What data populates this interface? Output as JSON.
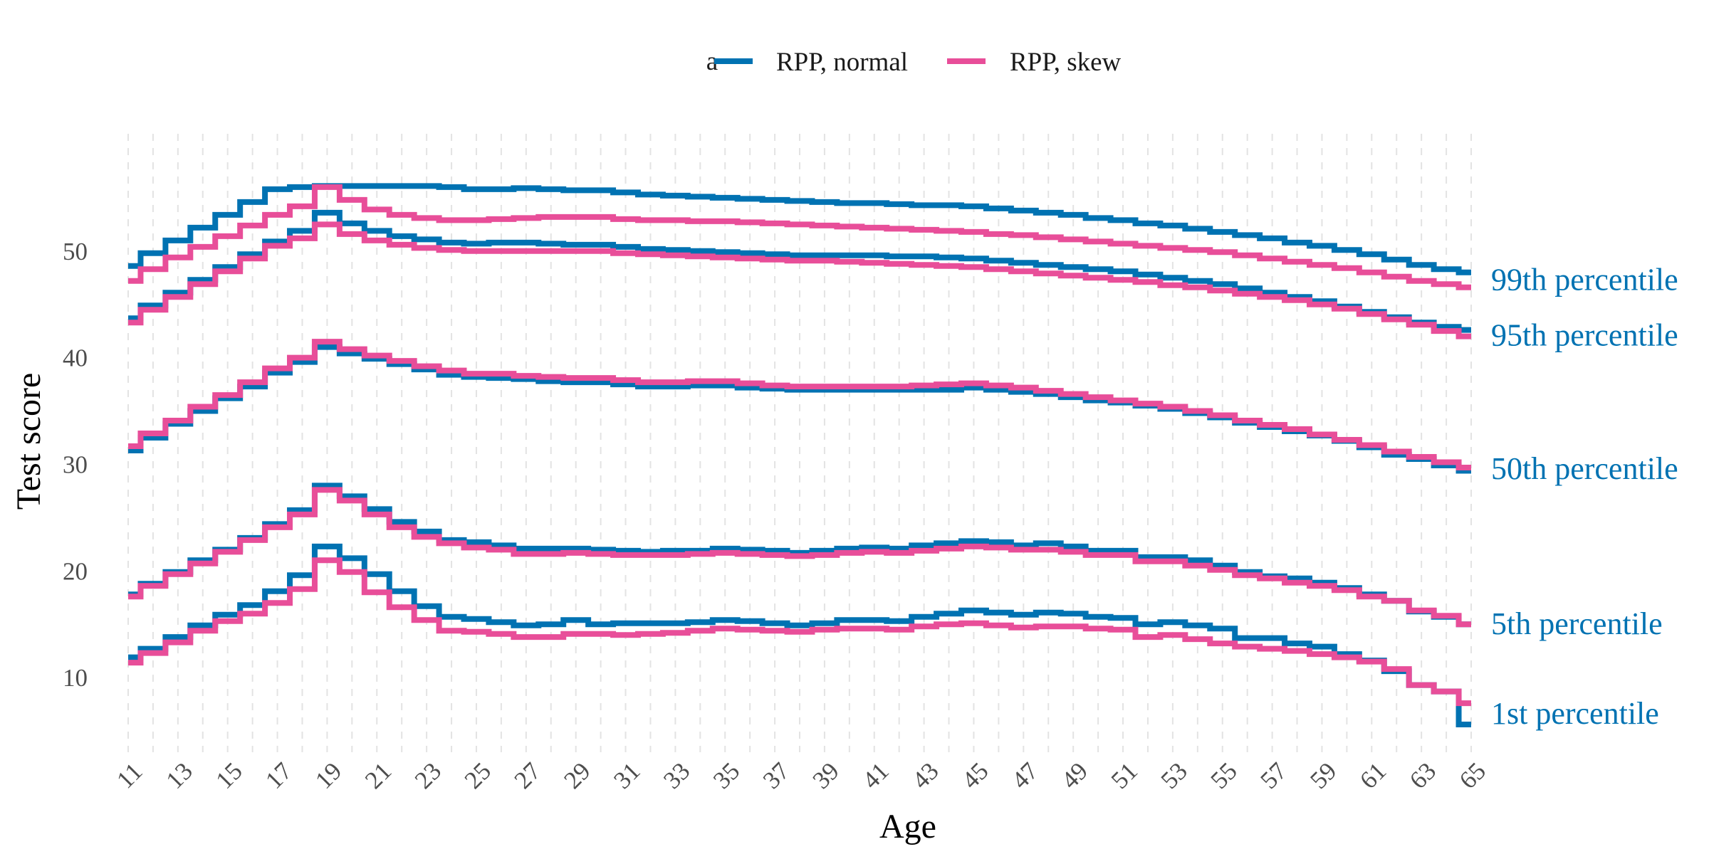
{
  "chart_data": {
    "type": "line",
    "step": true,
    "xlabel": "Age",
    "ylabel": "Test score",
    "xlim": [
      11,
      65
    ],
    "ylim": [
      3,
      61
    ],
    "x_ticks": [
      11,
      13,
      15,
      17,
      19,
      21,
      23,
      25,
      27,
      29,
      31,
      33,
      35,
      37,
      39,
      41,
      43,
      45,
      47,
      49,
      51,
      53,
      55,
      57,
      59,
      61,
      63,
      65
    ],
    "y_ticks": [
      10,
      20,
      30,
      40,
      50
    ],
    "grid_x": true,
    "grid_y": false,
    "legend": {
      "position": "top",
      "entries": [
        {
          "label": "RPP, normal",
          "color": "#0072B2"
        },
        {
          "label": "RPP, skew",
          "color": "#E84E99"
        }
      ]
    },
    "legend_stray_glyph": "a",
    "x": [
      11,
      12,
      13,
      14,
      15,
      16,
      17,
      18,
      19,
      20,
      21,
      22,
      23,
      24,
      25,
      26,
      27,
      28,
      29,
      30,
      31,
      32,
      33,
      34,
      35,
      36,
      37,
      38,
      39,
      40,
      41,
      42,
      43,
      44,
      45,
      46,
      47,
      48,
      49,
      50,
      51,
      52,
      53,
      54,
      55,
      56,
      57,
      58,
      59,
      60,
      61,
      62,
      63,
      64,
      65
    ],
    "series": [
      {
        "group": "99th percentile",
        "model": "RPP, normal",
        "values": [
          48.6,
          49.8,
          51.0,
          52.2,
          53.4,
          54.6,
          55.8,
          56.0,
          56.1,
          56.1,
          56.1,
          56.1,
          56.1,
          56.0,
          55.8,
          55.8,
          55.9,
          55.8,
          55.7,
          55.7,
          55.5,
          55.3,
          55.2,
          55.1,
          55.0,
          54.9,
          54.8,
          54.7,
          54.6,
          54.5,
          54.5,
          54.4,
          54.3,
          54.3,
          54.2,
          54.0,
          53.8,
          53.6,
          53.4,
          53.1,
          52.9,
          52.6,
          52.4,
          52.1,
          51.8,
          51.5,
          51.2,
          50.8,
          50.5,
          50.1,
          49.7,
          49.2,
          48.7,
          48.3,
          48.0
        ]
      },
      {
        "group": "99th percentile",
        "model": "RPP, skew",
        "values": [
          47.2,
          48.3,
          49.4,
          50.4,
          51.4,
          52.4,
          53.4,
          54.2,
          56.0,
          54.8,
          53.9,
          53.4,
          53.1,
          52.9,
          52.9,
          53.0,
          53.1,
          53.2,
          53.2,
          53.2,
          53.0,
          52.9,
          52.9,
          52.8,
          52.8,
          52.7,
          52.6,
          52.5,
          52.4,
          52.3,
          52.2,
          52.1,
          52.0,
          51.9,
          51.8,
          51.6,
          51.5,
          51.3,
          51.1,
          50.9,
          50.7,
          50.5,
          50.3,
          50.1,
          49.9,
          49.6,
          49.3,
          49.0,
          48.7,
          48.4,
          48.0,
          47.6,
          47.2,
          46.9,
          46.6
        ]
      },
      {
        "group": "95th percentile",
        "model": "RPP, normal",
        "values": [
          43.7,
          44.9,
          46.1,
          47.3,
          48.5,
          49.7,
          50.9,
          51.9,
          53.6,
          52.6,
          51.9,
          51.4,
          51.1,
          50.8,
          50.7,
          50.8,
          50.8,
          50.7,
          50.6,
          50.6,
          50.4,
          50.2,
          50.1,
          50.0,
          49.9,
          49.8,
          49.7,
          49.6,
          49.6,
          49.6,
          49.6,
          49.5,
          49.5,
          49.4,
          49.3,
          49.1,
          48.9,
          48.7,
          48.5,
          48.3,
          48.1,
          47.8,
          47.5,
          47.2,
          46.9,
          46.5,
          46.1,
          45.7,
          45.3,
          44.8,
          44.3,
          43.8,
          43.3,
          42.9,
          42.6
        ]
      },
      {
        "group": "95th percentile",
        "model": "RPP, skew",
        "values": [
          43.3,
          44.5,
          45.7,
          46.9,
          48.1,
          49.3,
          50.5,
          51.2,
          52.5,
          51.6,
          51.0,
          50.6,
          50.3,
          50.1,
          50.0,
          50.0,
          50.0,
          50.0,
          50.0,
          50.0,
          49.8,
          49.7,
          49.6,
          49.5,
          49.4,
          49.3,
          49.2,
          49.1,
          49.1,
          49.0,
          48.9,
          48.8,
          48.7,
          48.6,
          48.5,
          48.3,
          48.1,
          47.9,
          47.7,
          47.5,
          47.3,
          47.1,
          46.8,
          46.6,
          46.3,
          46.0,
          45.7,
          45.4,
          45.0,
          44.6,
          44.1,
          43.6,
          43.1,
          42.5,
          42.0
        ]
      },
      {
        "group": "50th percentile",
        "model": "RPP, normal",
        "values": [
          31.3,
          32.5,
          33.8,
          35.0,
          36.2,
          37.3,
          38.6,
          39.6,
          41.0,
          40.4,
          39.9,
          39.4,
          38.9,
          38.4,
          38.2,
          38.1,
          38.0,
          37.8,
          37.7,
          37.7,
          37.5,
          37.3,
          37.3,
          37.4,
          37.4,
          37.2,
          37.1,
          37.0,
          37.0,
          37.0,
          37.0,
          37.0,
          37.0,
          37.0,
          37.2,
          37.0,
          36.8,
          36.6,
          36.3,
          36.0,
          35.8,
          35.5,
          35.2,
          34.8,
          34.4,
          33.9,
          33.5,
          33.1,
          32.7,
          32.2,
          31.6,
          30.9,
          30.5,
          29.9,
          29.4
        ]
      },
      {
        "group": "50th percentile",
        "model": "RPP, skew",
        "values": [
          31.7,
          32.9,
          34.1,
          35.4,
          36.5,
          37.7,
          39.0,
          40.0,
          41.5,
          40.8,
          40.2,
          39.7,
          39.2,
          38.8,
          38.5,
          38.5,
          38.3,
          38.2,
          38.1,
          38.1,
          37.9,
          37.7,
          37.7,
          37.8,
          37.8,
          37.6,
          37.4,
          37.3,
          37.3,
          37.3,
          37.3,
          37.3,
          37.4,
          37.5,
          37.6,
          37.4,
          37.2,
          36.9,
          36.6,
          36.3,
          36.0,
          35.7,
          35.4,
          35.0,
          34.6,
          34.1,
          33.7,
          33.3,
          32.8,
          32.3,
          31.8,
          31.2,
          30.7,
          30.2,
          29.7
        ]
      },
      {
        "group": "5th percentile",
        "model": "RPP, normal",
        "values": [
          17.8,
          18.8,
          19.9,
          21.0,
          22.0,
          23.1,
          24.4,
          25.7,
          28.0,
          27.0,
          25.8,
          24.6,
          23.7,
          22.9,
          22.7,
          22.4,
          22.1,
          22.1,
          22.1,
          22.0,
          21.9,
          21.8,
          21.9,
          21.9,
          22.1,
          22.0,
          21.9,
          21.7,
          21.9,
          22.1,
          22.2,
          22.1,
          22.4,
          22.6,
          22.8,
          22.7,
          22.4,
          22.6,
          22.3,
          21.9,
          21.9,
          21.3,
          21.3,
          21.0,
          20.5,
          19.9,
          19.5,
          19.3,
          18.9,
          18.4,
          17.8,
          17.2,
          16.2,
          15.7,
          15.0
        ]
      },
      {
        "group": "5th percentile",
        "model": "RPP, skew",
        "values": [
          17.6,
          18.6,
          19.7,
          20.7,
          21.8,
          22.9,
          24.1,
          25.3,
          27.6,
          26.6,
          25.3,
          24.1,
          23.2,
          22.6,
          22.2,
          22.0,
          21.6,
          21.6,
          21.7,
          21.6,
          21.5,
          21.5,
          21.5,
          21.6,
          21.7,
          21.6,
          21.5,
          21.4,
          21.5,
          21.7,
          21.8,
          21.7,
          21.9,
          22.1,
          22.3,
          22.2,
          22.0,
          22.0,
          21.8,
          21.5,
          21.5,
          20.9,
          20.9,
          20.5,
          20.1,
          19.6,
          19.3,
          18.9,
          18.6,
          18.2,
          17.6,
          17.2,
          16.3,
          15.8,
          15.0
        ]
      },
      {
        "group": "1st percentile",
        "model": "RPP, normal",
        "values": [
          11.9,
          12.7,
          13.8,
          14.9,
          15.9,
          16.8,
          18.1,
          19.6,
          22.3,
          21.2,
          19.7,
          18.1,
          16.7,
          15.7,
          15.5,
          15.2,
          14.9,
          15.0,
          15.4,
          15.0,
          15.1,
          15.1,
          15.1,
          15.2,
          15.4,
          15.3,
          15.1,
          14.9,
          15.1,
          15.4,
          15.4,
          15.3,
          15.7,
          16.0,
          16.3,
          16.1,
          15.9,
          16.1,
          16.0,
          15.7,
          15.6,
          15.0,
          15.2,
          14.9,
          14.6,
          13.7,
          13.7,
          13.2,
          12.9,
          12.2,
          11.6,
          10.6,
          9.3,
          8.7,
          5.6
        ]
      },
      {
        "group": "1st percentile",
        "model": "RPP, skew",
        "values": [
          11.4,
          12.3,
          13.3,
          14.4,
          15.3,
          16.0,
          17.0,
          18.3,
          21.0,
          19.9,
          18.0,
          16.6,
          15.4,
          14.4,
          14.3,
          14.1,
          13.8,
          13.8,
          14.1,
          14.1,
          14.0,
          14.1,
          14.2,
          14.4,
          14.6,
          14.5,
          14.4,
          14.3,
          14.5,
          14.6,
          14.6,
          14.5,
          14.8,
          15.0,
          15.1,
          14.9,
          14.7,
          14.8,
          14.8,
          14.6,
          14.5,
          13.8,
          14.0,
          13.6,
          13.2,
          12.9,
          12.7,
          12.5,
          12.2,
          11.9,
          11.5,
          10.8,
          9.3,
          8.7,
          7.6
        ]
      }
    ],
    "percentile_labels": [
      "99th percentile",
      "95th percentile",
      "50th percentile",
      "5th percentile",
      "1st percentile"
    ]
  }
}
